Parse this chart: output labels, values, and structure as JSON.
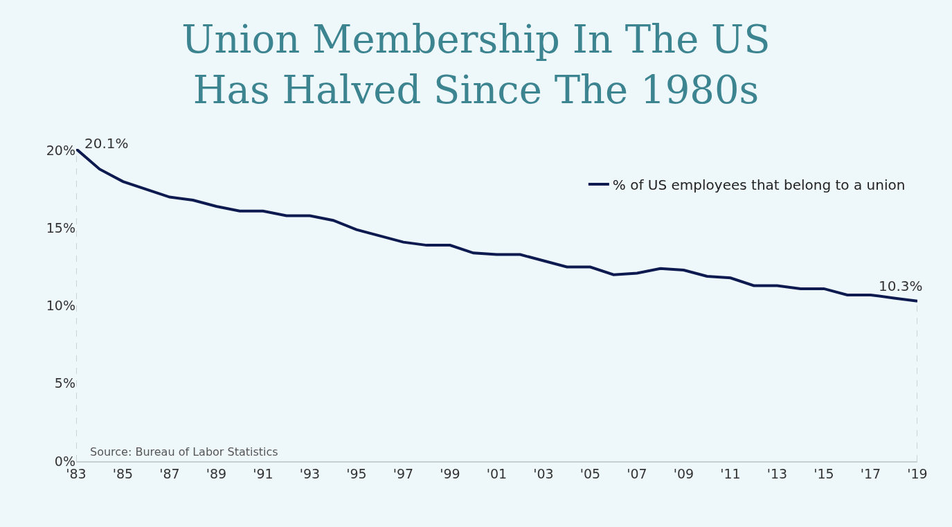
{
  "chart_data": {
    "type": "line",
    "title": "Union Membership In The US\nHas Halved Since The 1980s",
    "x": [
      1983,
      1984,
      1985,
      1986,
      1987,
      1988,
      1989,
      1990,
      1991,
      1992,
      1993,
      1994,
      1995,
      1996,
      1997,
      1998,
      1999,
      2000,
      2001,
      2002,
      2003,
      2004,
      2005,
      2006,
      2007,
      2008,
      2009,
      2010,
      2011,
      2012,
      2013,
      2014,
      2015,
      2016,
      2017,
      2018,
      2019
    ],
    "series": [
      {
        "name": "% of US employees that belong to a union",
        "color": "#0d1a4f",
        "values": [
          20.1,
          18.8,
          18.0,
          17.5,
          17.0,
          16.8,
          16.4,
          16.1,
          16.1,
          15.8,
          15.8,
          15.5,
          14.9,
          14.5,
          14.1,
          13.9,
          13.9,
          13.4,
          13.3,
          13.3,
          12.9,
          12.5,
          12.5,
          12.0,
          12.1,
          12.4,
          12.3,
          11.9,
          11.8,
          11.3,
          11.3,
          11.1,
          11.1,
          10.7,
          10.7,
          10.5,
          10.3
        ]
      }
    ],
    "xlim": [
      1983,
      2019
    ],
    "xticks": [
      {
        "value": 1983,
        "label": "'83"
      },
      {
        "value": 1985,
        "label": "'85"
      },
      {
        "value": 1987,
        "label": "'87"
      },
      {
        "value": 1989,
        "label": "'89"
      },
      {
        "value": 1991,
        "label": "'91"
      },
      {
        "value": 1993,
        "label": "'93"
      },
      {
        "value": 1995,
        "label": "'95"
      },
      {
        "value": 1997,
        "label": "'97"
      },
      {
        "value": 1999,
        "label": "'99"
      },
      {
        "value": 2001,
        "label": "'01"
      },
      {
        "value": 2003,
        "label": "'03"
      },
      {
        "value": 2005,
        "label": "'05"
      },
      {
        "value": 2007,
        "label": "'07"
      },
      {
        "value": 2009,
        "label": "'09"
      },
      {
        "value": 2011,
        "label": "'11"
      },
      {
        "value": 2013,
        "label": "'13"
      },
      {
        "value": 2015,
        "label": "'15"
      },
      {
        "value": 2017,
        "label": "'17"
      },
      {
        "value": 2019,
        "label": "'19"
      }
    ],
    "ylim": [
      0,
      20.1
    ],
    "yticks": [
      {
        "value": 0,
        "label": "0%"
      },
      {
        "value": 5,
        "label": "5%"
      },
      {
        "value": 10,
        "label": "10%"
      },
      {
        "value": 15,
        "label": "15%"
      },
      {
        "value": 20,
        "label": "20%"
      }
    ],
    "ref_lines": [
      {
        "axis": "x",
        "value": 1983,
        "color": "#bfc6cc",
        "line_style": "dashed"
      },
      {
        "axis": "x",
        "value": 2019,
        "color": "#bfc6cc",
        "line_style": "dashed"
      }
    ],
    "annotations": [
      {
        "text": "20.1%",
        "x": 1983,
        "y": 20.1
      },
      {
        "text": "10.3%",
        "x": 2019,
        "y": 10.3
      },
      "Source: Bureau of Labor Statistics"
    ],
    "grid": false,
    "legend": "top right",
    "marker": "none",
    "line_style": "solid"
  }
}
